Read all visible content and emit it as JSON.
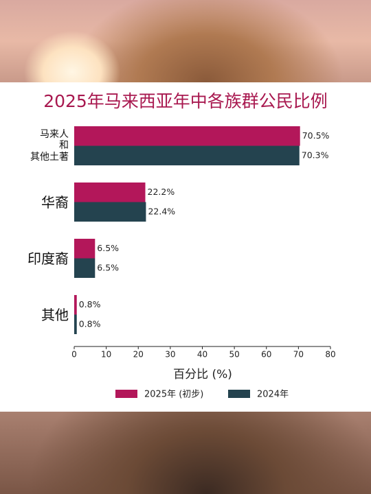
{
  "chart_data": {
    "type": "bar",
    "orientation": "horizontal",
    "title": "2025年马来西亚年中各族群公民比例",
    "categories": [
      "马来人\n和\n其他土著",
      "华裔",
      "印度裔",
      "其他"
    ],
    "series": [
      {
        "name": "2025年 (初步)",
        "color": "#b3175a",
        "values": [
          70.5,
          22.2,
          6.5,
          0.8
        ],
        "value_labels": [
          "70.5%",
          "22.2%",
          "6.5%",
          "0.8%"
        ]
      },
      {
        "name": "2024年",
        "color": "#24434f",
        "values": [
          70.3,
          22.4,
          6.5,
          0.8
        ],
        "value_labels": [
          "70.3%",
          "22.4%",
          "6.5%",
          "0.8%"
        ]
      }
    ],
    "xlabel": "百分比 (%)",
    "xlim": [
      0,
      80
    ],
    "xticks": [
      0,
      10,
      20,
      30,
      40,
      50,
      60,
      70,
      80
    ],
    "grid": false,
    "legend": "bottom"
  }
}
